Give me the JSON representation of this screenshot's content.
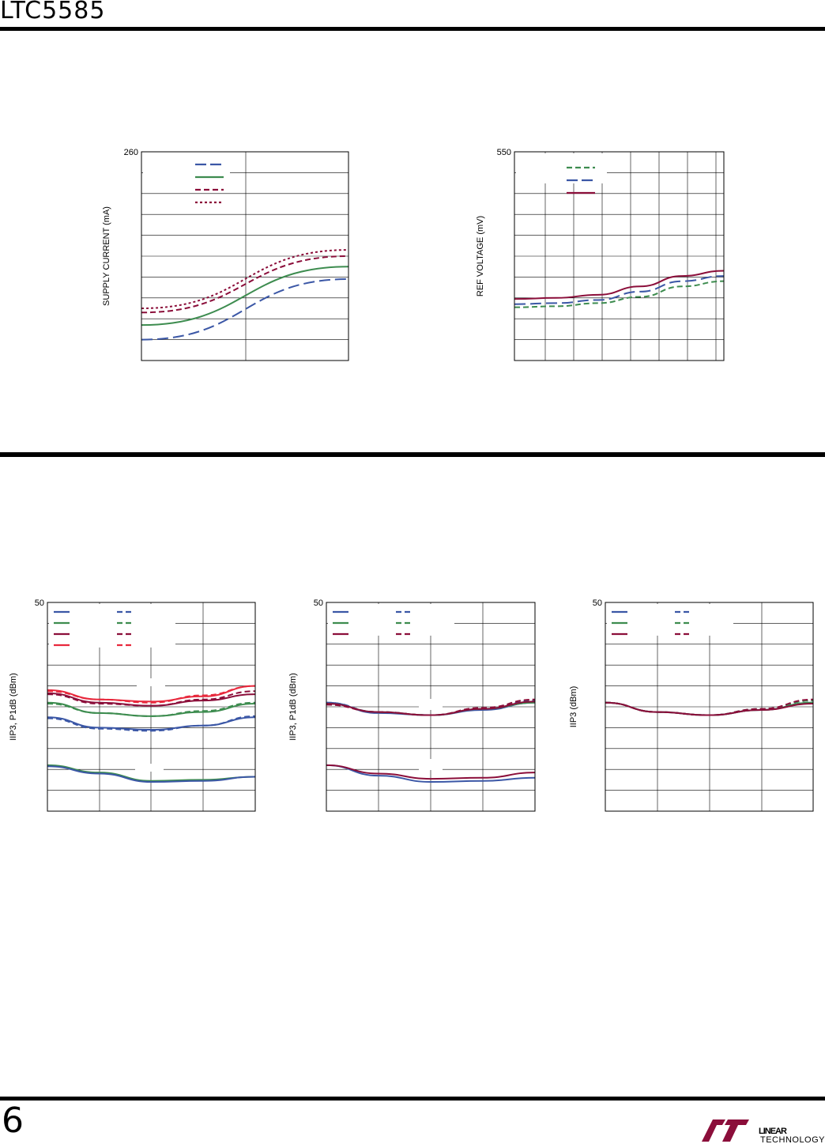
{
  "page": {
    "part_number": "LTC5585",
    "page_number": "6",
    "logo_text": "LINEAR TECHNOLOGY"
  },
  "colors": {
    "blue": "#3b57a6",
    "green": "#3d8c4f",
    "dark_red": "#8b0e3a",
    "red": "#e8283c",
    "grid": "#000000"
  },
  "chart_data": [
    {
      "id": "supply-current",
      "type": "line",
      "title": "",
      "xlabel": "",
      "ylabel": "SUPPLY CURRENT (mA)",
      "y_top_label": "260",
      "xlim": [
        0,
        1
      ],
      "ylim": [
        0,
        10
      ],
      "grid": true,
      "legend_placement": "top-left",
      "series": [
        {
          "color": "blue",
          "dash": "long",
          "x": [
            0,
            1
          ],
          "y": [
            1.0,
            3.9
          ]
        },
        {
          "color": "green",
          "dash": "solid",
          "x": [
            0,
            1
          ],
          "y": [
            1.7,
            4.5
          ]
        },
        {
          "color": "dark_red",
          "dash": "dash",
          "x": [
            0,
            1
          ],
          "y": [
            2.3,
            5.0
          ]
        },
        {
          "color": "dark_red",
          "dash": "dot",
          "x": [
            0,
            1
          ],
          "y": [
            2.5,
            5.3
          ]
        }
      ]
    },
    {
      "id": "ref-voltage",
      "type": "line",
      "title": "",
      "xlabel": "",
      "ylabel": "REF VOLTAGE (mV)",
      "y_top_label": "550",
      "xlim": [
        0,
        1
      ],
      "ylim": [
        0,
        10
      ],
      "grid": true,
      "legend_placement": "top-left",
      "series": [
        {
          "color": "green",
          "dash": "dash",
          "x": [
            0,
            0.2,
            0.4,
            0.6,
            0.8,
            1.0
          ],
          "y": [
            2.55,
            2.6,
            2.75,
            3.05,
            3.55,
            3.8
          ]
        },
        {
          "color": "blue",
          "dash": "long",
          "x": [
            0,
            0.2,
            0.4,
            0.6,
            0.8,
            1.0
          ],
          "y": [
            2.7,
            2.75,
            2.9,
            3.3,
            3.8,
            4.05
          ]
        },
        {
          "color": "dark_red",
          "dash": "solid",
          "x": [
            0,
            0.2,
            0.4,
            0.6,
            0.8,
            1.0
          ],
          "y": [
            2.95,
            3.0,
            3.15,
            3.55,
            4.05,
            4.3
          ]
        }
      ]
    },
    {
      "id": "iip3-p1db-a",
      "type": "line",
      "title": "",
      "xlabel": "",
      "ylabel": "IIP3, P1dB (dBm)",
      "y_top_label": "50",
      "xlim": [
        0,
        1
      ],
      "ylim": [
        0,
        10
      ],
      "grid": true,
      "legend_placement": "top-left",
      "series": [
        {
          "color": "blue",
          "dash": "solid",
          "x": [
            0,
            0.25,
            0.5,
            0.75,
            1.0
          ],
          "y": [
            4.5,
            4.0,
            3.9,
            4.1,
            4.5
          ]
        },
        {
          "color": "blue",
          "dash": "dash",
          "x": [
            0,
            0.25,
            0.5,
            0.75,
            1.0
          ],
          "y": [
            4.45,
            3.95,
            3.85,
            4.1,
            4.55
          ]
        },
        {
          "color": "green",
          "dash": "solid",
          "x": [
            0,
            0.25,
            0.5,
            0.75,
            1.0
          ],
          "y": [
            5.2,
            4.7,
            4.55,
            4.75,
            5.15
          ]
        },
        {
          "color": "green",
          "dash": "dash",
          "x": [
            0,
            0.25,
            0.5,
            0.75,
            1.0
          ],
          "y": [
            5.15,
            4.7,
            4.55,
            4.8,
            5.2
          ]
        },
        {
          "color": "dark_red",
          "dash": "solid",
          "x": [
            0,
            0.25,
            0.5,
            0.75,
            1.0
          ],
          "y": [
            5.65,
            5.2,
            5.05,
            5.3,
            5.6
          ]
        },
        {
          "color": "dark_red",
          "dash": "dash",
          "x": [
            0,
            0.25,
            0.5,
            0.75,
            1.0
          ],
          "y": [
            5.6,
            5.15,
            5.05,
            5.35,
            5.75
          ]
        },
        {
          "color": "red",
          "dash": "solid",
          "x": [
            0,
            0.25,
            0.5,
            0.75,
            1.0
          ],
          "y": [
            5.8,
            5.35,
            5.25,
            5.5,
            6.0
          ]
        },
        {
          "color": "red",
          "dash": "dash",
          "x": [
            0,
            0.25,
            0.5,
            0.75,
            1.0
          ],
          "y": [
            5.75,
            5.35,
            5.2,
            5.55,
            6.0
          ]
        },
        {
          "color": "green",
          "dash": "solid",
          "x": [
            0,
            0.25,
            0.5,
            0.75,
            1.0
          ],
          "y": [
            2.2,
            1.85,
            1.45,
            1.5,
            1.65
          ]
        },
        {
          "color": "blue",
          "dash": "solid",
          "x": [
            0,
            0.25,
            0.5,
            0.75,
            1.0
          ],
          "y": [
            2.15,
            1.8,
            1.4,
            1.45,
            1.65
          ]
        }
      ]
    },
    {
      "id": "iip3-p1db-b",
      "type": "line",
      "title": "",
      "xlabel": "",
      "ylabel": "IIP3, P1dB (dBm)",
      "y_top_label": "50",
      "xlim": [
        0,
        1
      ],
      "ylim": [
        0,
        10
      ],
      "grid": true,
      "legend_placement": "top-left",
      "series": [
        {
          "color": "blue",
          "dash": "solid",
          "x": [
            0,
            0.25,
            0.5,
            0.75,
            1.0
          ],
          "y": [
            5.2,
            4.7,
            4.6,
            4.85,
            5.2
          ]
        },
        {
          "color": "blue",
          "dash": "dash",
          "x": [
            0,
            0.25,
            0.5,
            0.75,
            1.0
          ],
          "y": [
            5.2,
            4.75,
            4.6,
            4.9,
            5.3
          ]
        },
        {
          "color": "green",
          "dash": "solid",
          "x": [
            0,
            0.25,
            0.5,
            0.75,
            1.0
          ],
          "y": [
            5.15,
            4.75,
            4.6,
            4.9,
            5.2
          ]
        },
        {
          "color": "green",
          "dash": "dash",
          "x": [
            0,
            0.25,
            0.5,
            0.75,
            1.0
          ],
          "y": [
            5.15,
            4.75,
            4.6,
            4.9,
            5.25
          ]
        },
        {
          "color": "dark_red",
          "dash": "solid",
          "x": [
            0,
            0.25,
            0.5,
            0.75,
            1.0
          ],
          "y": [
            5.15,
            4.75,
            4.6,
            4.9,
            5.25
          ]
        },
        {
          "color": "dark_red",
          "dash": "dash",
          "x": [
            0,
            0.25,
            0.5,
            0.75,
            1.0
          ],
          "y": [
            5.1,
            4.75,
            4.6,
            4.95,
            5.35
          ]
        },
        {
          "color": "blue",
          "dash": "solid",
          "x": [
            0,
            0.25,
            0.5,
            0.75,
            1.0
          ],
          "y": [
            2.2,
            1.7,
            1.4,
            1.45,
            1.6
          ]
        },
        {
          "color": "dark_red",
          "dash": "solid",
          "x": [
            0,
            0.25,
            0.5,
            0.75,
            1.0
          ],
          "y": [
            2.2,
            1.8,
            1.55,
            1.6,
            1.85
          ]
        }
      ]
    },
    {
      "id": "iip3-c",
      "type": "line",
      "title": "",
      "xlabel": "",
      "ylabel": "IIP3 (dBm)",
      "y_top_label": "50",
      "xlim": [
        0,
        1
      ],
      "ylim": [
        0,
        10
      ],
      "grid": true,
      "legend_placement": "top-left",
      "series": [
        {
          "color": "blue",
          "dash": "solid",
          "x": [
            0,
            0.25,
            0.5,
            0.75,
            1.0
          ],
          "y": [
            5.2,
            4.75,
            4.6,
            4.85,
            5.2
          ]
        },
        {
          "color": "blue",
          "dash": "dash",
          "x": [
            0,
            0.25,
            0.5,
            0.75,
            1.0
          ],
          "y": [
            5.2,
            4.75,
            4.6,
            4.9,
            5.3
          ]
        },
        {
          "color": "green",
          "dash": "solid",
          "x": [
            0,
            0.25,
            0.5,
            0.75,
            1.0
          ],
          "y": [
            5.2,
            4.75,
            4.6,
            4.85,
            5.2
          ]
        },
        {
          "color": "green",
          "dash": "dash",
          "x": [
            0,
            0.25,
            0.5,
            0.75,
            1.0
          ],
          "y": [
            5.2,
            4.75,
            4.6,
            4.9,
            5.3
          ]
        },
        {
          "color": "dark_red",
          "dash": "solid",
          "x": [
            0,
            0.25,
            0.5,
            0.75,
            1.0
          ],
          "y": [
            5.2,
            4.75,
            4.6,
            4.85,
            5.15
          ]
        },
        {
          "color": "dark_red",
          "dash": "dash",
          "x": [
            0,
            0.25,
            0.5,
            0.75,
            1.0
          ],
          "y": [
            5.2,
            4.75,
            4.6,
            4.9,
            5.35
          ]
        }
      ]
    }
  ]
}
